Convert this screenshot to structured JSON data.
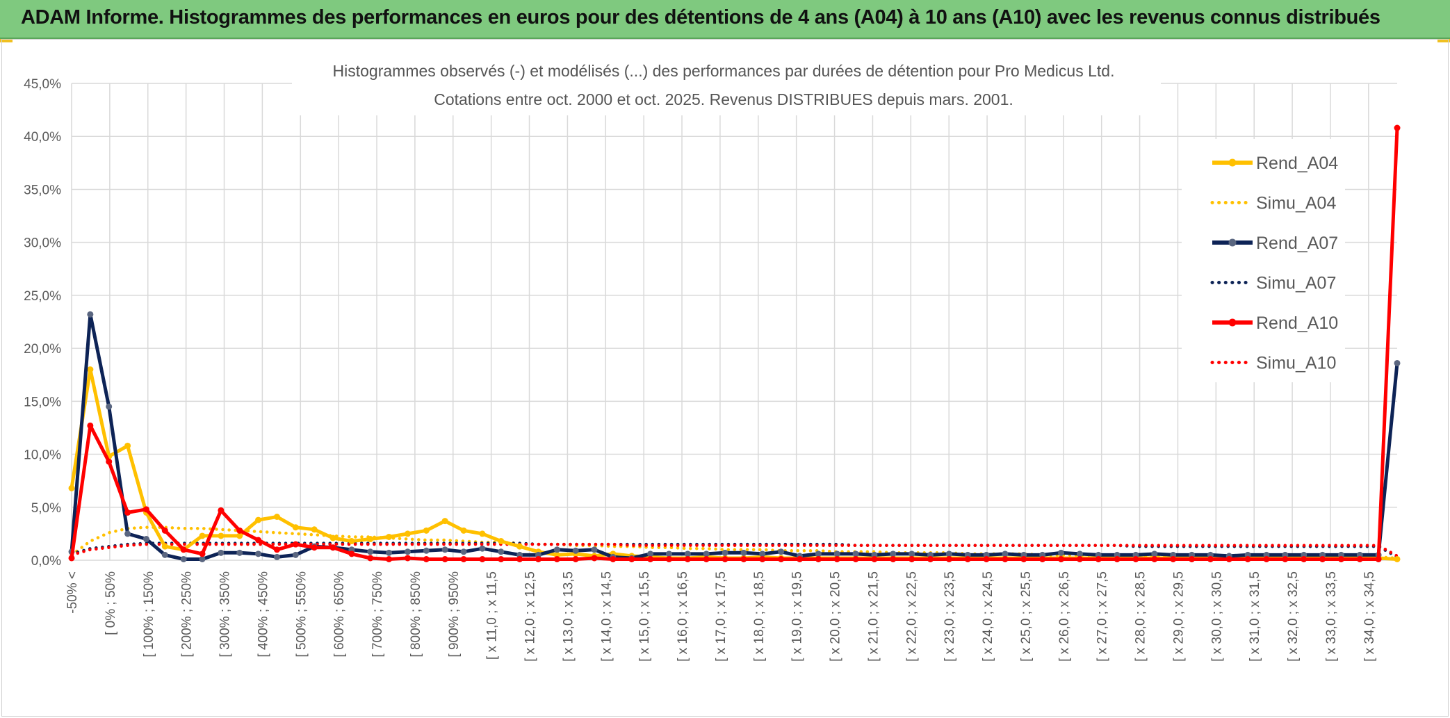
{
  "banner": {
    "title": "ADAM Informe. Histogrammes des performances en euros pour des détentions de 4 ans (A04) à 10 ans (A10) avec les revenus connus distribués",
    "color": "#7fc97f"
  },
  "chart_data": {
    "type": "line",
    "title": "Histogrammes observés (-) et modélisés (...) des performances par durées de détention pour Pro Medicus Ltd.",
    "subtitle": "Cotations entre oct. 2000 et oct. 2025. Revenus DISTRIBUES depuis mars. 2001.",
    "xlabel": "",
    "ylabel": "",
    "ylim": [
      0,
      45
    ],
    "ytick_labels": [
      "0,0%",
      "5,0%",
      "10,0%",
      "15,0%",
      "20,0%",
      "25,0%",
      "30,0%",
      "35,0%",
      "40,0%",
      "45,0%"
    ],
    "grid": true,
    "legend_position": "right",
    "x_tick_labels": [
      "-50% <",
      "[ 0% ; 50%",
      "[ 100% ; 150%",
      "[ 200% ; 250%",
      "[ 300% ; 350%",
      "[ 400% ; 450%",
      "[ 500% ; 550%",
      "[ 600% ; 650%",
      "[ 700% ; 750%",
      "[ 800% ; 850%",
      "[ 900% ; 950%",
      "[ x 11,0 ; x 11,5",
      "[ x 12,0 ; x 12,5",
      "[ x 13,0 ; x 13,5",
      "[ x 14,0 ; x 14,5",
      "[ x 15,0 ; x 15,5",
      "[ x 16,0 ; x 16,5",
      "[ x 17,0 ; x 17,5",
      "[ x 18,0 ; x 18,5",
      "[ x 19,0 ; x 19,5",
      "[ x 20,0 ; x 20,5",
      "[ x 21,0 ; x 21,5",
      "[ x 22,0 ; x 22,5",
      "[ x 23,0 ; x 23,5",
      "[ x 24,0 ; x 24,5",
      "[ x 25,0 ; x 25,5",
      "[ x 26,0 ; x 26,5",
      "[ x 27,0 ; x 27,5",
      "[ x 28,0 ; x 28,5",
      "[ x 29,0 ; x 29,5",
      "[ x 30,0 ; x 30,5",
      "[ x 31,0 ; x 31,5",
      "[ x 32,0 ; x 32,5",
      "[ x 33,0 ; x 33,5",
      "[ x 34,0 ; x 34,5"
    ],
    "n_points": 72,
    "series": [
      {
        "name": "Rend_A04",
        "color": "#ffc000",
        "style": "solid",
        "markers": true,
        "values": [
          6.8,
          18.0,
          9.8,
          10.8,
          4.5,
          1.3,
          1.0,
          2.3,
          2.3,
          2.3,
          3.8,
          4.1,
          3.1,
          2.9,
          2.1,
          1.8,
          2.0,
          2.2,
          2.5,
          2.8,
          3.7,
          2.8,
          2.5,
          1.8,
          1.3,
          0.8,
          0.5,
          0.6,
          0.4,
          0.6,
          0.4,
          0.3,
          0.2,
          0.2,
          0.3,
          0.2,
          0.2,
          0.3,
          0.2,
          0.2,
          0.2,
          0.2,
          0.2,
          0.2,
          0.2,
          0.2,
          0.2,
          0.2,
          0.2,
          0.2,
          0.2,
          0.2,
          0.2,
          0.2,
          0.2,
          0.2,
          0.2,
          0.2,
          0.2,
          0.2,
          0.2,
          0.2,
          0.2,
          0.2,
          0.2,
          0.2,
          0.2,
          0.2,
          0.2,
          0.2,
          0.2,
          0.1
        ]
      },
      {
        "name": "Simu_A04",
        "color": "#ffc000",
        "style": "dotted",
        "markers": false,
        "values": [
          0.5,
          1.8,
          2.6,
          3.0,
          3.1,
          3.1,
          3.0,
          3.0,
          2.9,
          2.8,
          2.7,
          2.6,
          2.5,
          2.4,
          2.3,
          2.2,
          2.2,
          2.1,
          2.0,
          1.9,
          1.9,
          1.8,
          1.7,
          1.7,
          1.6,
          1.5,
          1.5,
          1.4,
          1.4,
          1.3,
          1.3,
          1.2,
          1.2,
          1.1,
          1.1,
          1.0,
          1.0,
          1.0,
          0.9,
          0.9,
          0.9,
          0.8,
          0.8,
          0.8,
          0.7,
          0.7,
          0.7,
          0.7,
          0.6,
          0.6,
          0.6,
          0.6,
          0.5,
          0.5,
          0.5,
          0.5,
          0.5,
          0.4,
          0.4,
          0.4,
          0.4,
          0.4,
          0.4,
          0.3,
          0.3,
          0.3,
          0.3,
          0.3,
          0.3,
          0.3,
          0.3,
          0.2
        ]
      },
      {
        "name": "Rend_A07",
        "color": "#0d2356",
        "style": "solid",
        "markers": true,
        "values": [
          0.8,
          23.2,
          14.5,
          2.5,
          2.0,
          0.5,
          0.1,
          0.1,
          0.7,
          0.7,
          0.6,
          0.3,
          0.5,
          1.3,
          1.2,
          1.0,
          0.8,
          0.7,
          0.8,
          0.9,
          1.0,
          0.8,
          1.1,
          0.8,
          0.5,
          0.5,
          1.0,
          0.9,
          1.0,
          0.3,
          0.2,
          0.6,
          0.6,
          0.6,
          0.6,
          0.7,
          0.7,
          0.6,
          0.8,
          0.4,
          0.6,
          0.6,
          0.6,
          0.5,
          0.6,
          0.6,
          0.5,
          0.6,
          0.5,
          0.5,
          0.6,
          0.5,
          0.5,
          0.7,
          0.6,
          0.5,
          0.5,
          0.5,
          0.6,
          0.5,
          0.5,
          0.5,
          0.4,
          0.5,
          0.5,
          0.5,
          0.5,
          0.5,
          0.5,
          0.5,
          0.5,
          18.6
        ]
      },
      {
        "name": "Simu_A07",
        "color": "#0d2356",
        "style": "dotted",
        "markers": false,
        "values": [
          0.6,
          1.1,
          1.3,
          1.5,
          1.6,
          1.6,
          1.6,
          1.6,
          1.6,
          1.6,
          1.6,
          1.6,
          1.6,
          1.6,
          1.6,
          1.6,
          1.6,
          1.6,
          1.6,
          1.6,
          1.6,
          1.6,
          1.6,
          1.6,
          1.6,
          1.5,
          1.5,
          1.5,
          1.5,
          1.5,
          1.5,
          1.5,
          1.5,
          1.5,
          1.5,
          1.5,
          1.5,
          1.5,
          1.5,
          1.5,
          1.5,
          1.5,
          1.4,
          1.4,
          1.4,
          1.4,
          1.4,
          1.4,
          1.4,
          1.4,
          1.4,
          1.4,
          1.4,
          1.4,
          1.4,
          1.4,
          1.4,
          1.3,
          1.3,
          1.3,
          1.3,
          1.3,
          1.3,
          1.3,
          1.3,
          1.3,
          1.3,
          1.3,
          1.3,
          1.3,
          1.3,
          0.3
        ]
      },
      {
        "name": "Rend_A10",
        "color": "#ff0000",
        "style": "solid",
        "markers": true,
        "values": [
          0.2,
          12.7,
          9.3,
          4.5,
          4.8,
          2.8,
          1.0,
          0.6,
          4.7,
          2.8,
          1.9,
          1.0,
          1.5,
          1.2,
          1.2,
          0.6,
          0.2,
          0.1,
          0.2,
          0.1,
          0.1,
          0.1,
          0.1,
          0.1,
          0.1,
          0.1,
          0.1,
          0.1,
          0.2,
          0.1,
          0.1,
          0.1,
          0.1,
          0.1,
          0.1,
          0.1,
          0.1,
          0.1,
          0.1,
          0.1,
          0.1,
          0.1,
          0.1,
          0.1,
          0.1,
          0.1,
          0.1,
          0.1,
          0.1,
          0.1,
          0.1,
          0.1,
          0.1,
          0.1,
          0.1,
          0.1,
          0.1,
          0.1,
          0.1,
          0.1,
          0.1,
          0.1,
          0.1,
          0.1,
          0.1,
          0.1,
          0.1,
          0.1,
          0.1,
          0.1,
          0.1,
          40.8
        ]
      },
      {
        "name": "Simu_A10",
        "color": "#ff0000",
        "style": "dotted",
        "markers": false,
        "values": [
          0.5,
          1.0,
          1.2,
          1.4,
          1.5,
          1.5,
          1.5,
          1.5,
          1.5,
          1.5,
          1.5,
          1.5,
          1.5,
          1.5,
          1.5,
          1.5,
          1.5,
          1.5,
          1.5,
          1.5,
          1.5,
          1.5,
          1.5,
          1.5,
          1.5,
          1.5,
          1.5,
          1.5,
          1.5,
          1.5,
          1.4,
          1.4,
          1.4,
          1.4,
          1.4,
          1.4,
          1.4,
          1.4,
          1.4,
          1.4,
          1.4,
          1.4,
          1.4,
          1.4,
          1.4,
          1.4,
          1.4,
          1.4,
          1.4,
          1.4,
          1.4,
          1.4,
          1.4,
          1.4,
          1.4,
          1.4,
          1.4,
          1.4,
          1.4,
          1.4,
          1.4,
          1.4,
          1.4,
          1.4,
          1.4,
          1.4,
          1.4,
          1.4,
          1.4,
          1.4,
          1.4,
          0.4
        ]
      }
    ]
  }
}
